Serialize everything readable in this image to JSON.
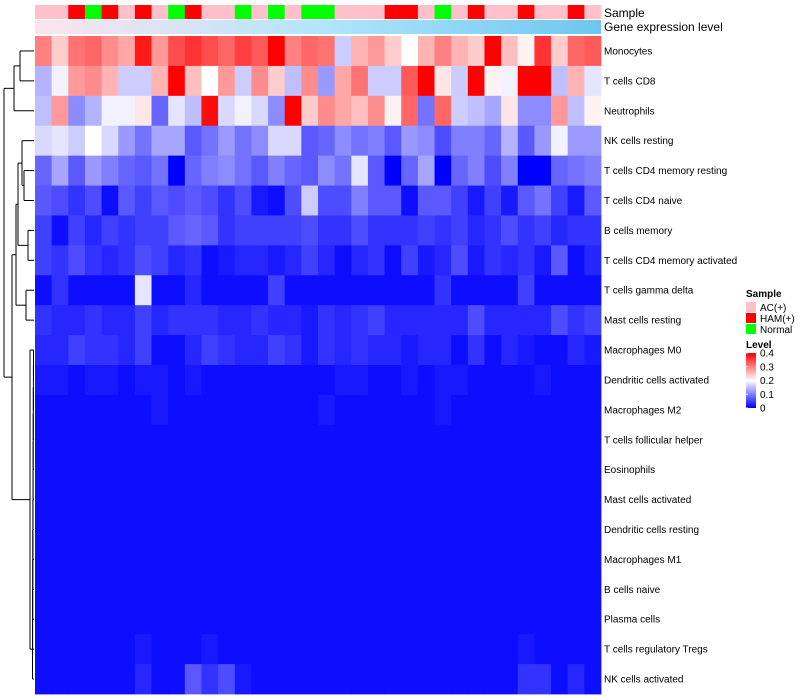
{
  "chart_data": {
    "type": "heatmap",
    "annotation_tracks": [
      "Sample",
      "Gene expression level"
    ],
    "column_count": 34,
    "sample_annotation": [
      "AC(+)",
      "AC(+)",
      "HAM(+)",
      "Normal",
      "HAM(+)",
      "AC(+)",
      "HAM(+)",
      "AC(+)",
      "Normal",
      "HAM(+)",
      "AC(+)",
      "AC(+)",
      "Normal",
      "AC(+)",
      "Normal",
      "AC(+)",
      "Normal",
      "Normal",
      "AC(+)",
      "AC(+)",
      "AC(+)",
      "HAM(+)",
      "HAM(+)",
      "AC(+)",
      "Normal",
      "AC(+)",
      "HAM(+)",
      "AC(+)",
      "AC(+)",
      "HAM(+)",
      "AC(+)",
      "AC(+)",
      "HAM(+)",
      "AC(+)"
    ],
    "gene_expression_gradient": [
      "#fce4ec",
      "#b3e5fc",
      "#6ec6f0"
    ],
    "rows": [
      "Monocytes",
      "T cells CD8",
      "Neutrophils",
      "NK cells resting",
      "T cells CD4 memory resting",
      "T cells CD4 naive",
      "B cells memory",
      "T cells CD4 memory activated",
      "T cells gamma delta",
      "Mast cells resting",
      "Macrophages M0",
      "Dendritic cells activated",
      "Macrophages M2",
      "T cells follicular helper",
      "Eosinophils",
      "Mast cells activated",
      "Dendritic cells resting",
      "Macrophages M1",
      "B cells naive",
      "Plasma cells",
      "T cells regulatory  Tregs",
      "NK cells activated"
    ],
    "values": [
      [
        0.3,
        0.24,
        0.31,
        0.32,
        0.29,
        0.27,
        0.38,
        0.28,
        0.34,
        0.36,
        0.34,
        0.32,
        0.35,
        0.33,
        0.4,
        0.3,
        0.32,
        0.31,
        0.16,
        0.26,
        0.28,
        0.24,
        0.2,
        0.26,
        0.3,
        0.26,
        0.24,
        0.42,
        0.25,
        0.21,
        0.36,
        0.24,
        0.32,
        0.33
      ],
      [
        0.14,
        0.19,
        0.28,
        0.29,
        0.26,
        0.16,
        0.16,
        0.26,
        0.43,
        0.25,
        0.2,
        0.28,
        0.16,
        0.29,
        0.24,
        0.15,
        0.29,
        0.12,
        0.27,
        0.31,
        0.16,
        0.16,
        0.33,
        0.43,
        0.22,
        0.16,
        0.42,
        0.21,
        0.19,
        0.42,
        0.43,
        0.15,
        0.26,
        0.18
      ],
      [
        0.15,
        0.28,
        0.11,
        0.14,
        0.19,
        0.19,
        0.22,
        0.08,
        0.18,
        0.15,
        0.39,
        0.17,
        0.19,
        0.17,
        0.11,
        0.41,
        0.24,
        0.29,
        0.27,
        0.25,
        0.29,
        0.21,
        0.32,
        0.09,
        0.32,
        0.16,
        0.15,
        0.13,
        0.22,
        0.11,
        0.11,
        0.28,
        0.15,
        0.21
      ],
      [
        0.17,
        0.18,
        0.16,
        0.2,
        0.17,
        0.12,
        0.09,
        0.13,
        0.13,
        0.07,
        0.09,
        0.12,
        0.09,
        0.11,
        0.17,
        0.17,
        0.07,
        0.08,
        0.11,
        0.09,
        0.1,
        0.07,
        0.12,
        0.11,
        0.06,
        0.1,
        0.1,
        0.08,
        0.14,
        0.07,
        0.12,
        0.19,
        0.12,
        0.12
      ],
      [
        0.08,
        0.13,
        0.07,
        0.12,
        0.1,
        0.08,
        0.07,
        0.09,
        0.0,
        0.08,
        0.1,
        0.11,
        0.09,
        0.07,
        0.1,
        0.08,
        0.07,
        0.11,
        0.09,
        0.18,
        0.07,
        0.0,
        0.08,
        0.13,
        0.0,
        0.08,
        0.1,
        0.06,
        0.1,
        0.0,
        0.0,
        0.08,
        0.09,
        0.1
      ],
      [
        0.07,
        0.06,
        0.04,
        0.06,
        0.01,
        0.07,
        0.05,
        0.07,
        0.06,
        0.07,
        0.06,
        0.04,
        0.06,
        0.02,
        0.01,
        0.06,
        0.16,
        0.06,
        0.06,
        0.1,
        0.07,
        0.07,
        0.01,
        0.07,
        0.07,
        0.05,
        0.02,
        0.05,
        0.02,
        0.07,
        0.09,
        0.05,
        0.02,
        0.07
      ],
      [
        0.05,
        0.01,
        0.05,
        0.03,
        0.05,
        0.04,
        0.05,
        0.05,
        0.07,
        0.08,
        0.07,
        0.04,
        0.05,
        0.05,
        0.05,
        0.05,
        0.06,
        0.04,
        0.04,
        0.06,
        0.04,
        0.04,
        0.04,
        0.05,
        0.04,
        0.05,
        0.03,
        0.04,
        0.06,
        0.04,
        0.05,
        0.03,
        0.04,
        0.04
      ],
      [
        0.05,
        0.04,
        0.06,
        0.04,
        0.03,
        0.04,
        0.06,
        0.05,
        0.03,
        0.04,
        0.01,
        0.02,
        0.03,
        0.03,
        0.02,
        0.03,
        0.05,
        0.03,
        0.01,
        0.03,
        0.04,
        0.01,
        0.05,
        0.02,
        0.03,
        0.06,
        0.02,
        0.04,
        0.03,
        0.04,
        0.02,
        0.07,
        0.01,
        0.03
      ],
      [
        0.01,
        0.04,
        0.01,
        0.01,
        0.01,
        0.01,
        0.18,
        0.01,
        0.01,
        0.03,
        0.01,
        0.01,
        0.01,
        0.01,
        0.05,
        0.01,
        0.01,
        0.01,
        0.01,
        0.01,
        0.01,
        0.01,
        0.01,
        0.01,
        0.04,
        0.01,
        0.01,
        0.01,
        0.01,
        0.05,
        0.01,
        0.01,
        0.01,
        0.01
      ],
      [
        0.04,
        0.03,
        0.03,
        0.04,
        0.03,
        0.03,
        0.05,
        0.03,
        0.04,
        0.04,
        0.04,
        0.03,
        0.03,
        0.04,
        0.03,
        0.03,
        0.02,
        0.04,
        0.03,
        0.04,
        0.05,
        0.03,
        0.03,
        0.03,
        0.03,
        0.03,
        0.06,
        0.03,
        0.03,
        0.03,
        0.03,
        0.06,
        0.04,
        0.05
      ],
      [
        0.03,
        0.03,
        0.05,
        0.04,
        0.04,
        0.03,
        0.05,
        0.01,
        0.01,
        0.03,
        0.05,
        0.04,
        0.03,
        0.03,
        0.05,
        0.04,
        0.02,
        0.04,
        0.03,
        0.04,
        0.03,
        0.03,
        0.02,
        0.03,
        0.03,
        0.01,
        0.04,
        0.01,
        0.03,
        0.02,
        0.01,
        0.01,
        0.03,
        0.02
      ],
      [
        0.02,
        0.02,
        0.01,
        0.02,
        0.02,
        0.01,
        0.02,
        0.02,
        0.01,
        0.02,
        0.01,
        0.01,
        0.01,
        0.01,
        0.01,
        0.01,
        0.01,
        0.01,
        0.02,
        0.02,
        0.01,
        0.01,
        0.02,
        0.01,
        0.02,
        0.02,
        0.01,
        0.01,
        0.01,
        0.01,
        0.02,
        0.01,
        0.01,
        0.01
      ],
      [
        0.01,
        0.01,
        0.01,
        0.01,
        0.01,
        0.01,
        0.01,
        0.02,
        0.01,
        0.01,
        0.01,
        0.01,
        0.01,
        0.01,
        0.01,
        0.01,
        0.01,
        0.02,
        0.01,
        0.01,
        0.01,
        0.01,
        0.01,
        0.01,
        0.02,
        0.01,
        0.01,
        0.01,
        0.01,
        0.01,
        0.01,
        0.01,
        0.01,
        0.01
      ],
      [
        0.01,
        0.01,
        0.01,
        0.01,
        0.01,
        0.01,
        0.01,
        0.01,
        0.01,
        0.01,
        0.01,
        0.01,
        0.01,
        0.01,
        0.01,
        0.01,
        0.01,
        0.01,
        0.01,
        0.01,
        0.01,
        0.01,
        0.01,
        0.01,
        0.01,
        0.01,
        0.01,
        0.01,
        0.01,
        0.01,
        0.01,
        0.01,
        0.01,
        0.01
      ],
      [
        0.01,
        0.01,
        0.01,
        0.01,
        0.01,
        0.01,
        0.01,
        0.01,
        0.01,
        0.01,
        0.01,
        0.01,
        0.01,
        0.01,
        0.01,
        0.01,
        0.01,
        0.01,
        0.01,
        0.01,
        0.01,
        0.01,
        0.01,
        0.01,
        0.01,
        0.01,
        0.01,
        0.01,
        0.01,
        0.01,
        0.01,
        0.01,
        0.01,
        0.01
      ],
      [
        0.01,
        0.01,
        0.01,
        0.01,
        0.01,
        0.01,
        0.01,
        0.01,
        0.01,
        0.01,
        0.01,
        0.01,
        0.01,
        0.01,
        0.01,
        0.01,
        0.01,
        0.01,
        0.01,
        0.01,
        0.01,
        0.01,
        0.01,
        0.01,
        0.01,
        0.01,
        0.01,
        0.01,
        0.01,
        0.01,
        0.01,
        0.01,
        0.01,
        0.01
      ],
      [
        0.01,
        0.01,
        0.01,
        0.01,
        0.01,
        0.01,
        0.01,
        0.01,
        0.01,
        0.01,
        0.01,
        0.01,
        0.01,
        0.01,
        0.01,
        0.01,
        0.01,
        0.01,
        0.01,
        0.01,
        0.01,
        0.01,
        0.01,
        0.01,
        0.01,
        0.01,
        0.01,
        0.01,
        0.01,
        0.01,
        0.01,
        0.01,
        0.01,
        0.01
      ],
      [
        0.01,
        0.01,
        0.01,
        0.01,
        0.01,
        0.01,
        0.01,
        0.01,
        0.01,
        0.01,
        0.01,
        0.01,
        0.01,
        0.01,
        0.01,
        0.01,
        0.01,
        0.01,
        0.01,
        0.01,
        0.01,
        0.01,
        0.01,
        0.01,
        0.01,
        0.01,
        0.01,
        0.01,
        0.01,
        0.01,
        0.01,
        0.01,
        0.01,
        0.01
      ],
      [
        0.01,
        0.01,
        0.01,
        0.01,
        0.01,
        0.01,
        0.01,
        0.01,
        0.01,
        0.01,
        0.01,
        0.01,
        0.01,
        0.01,
        0.01,
        0.01,
        0.01,
        0.01,
        0.01,
        0.01,
        0.01,
        0.01,
        0.01,
        0.01,
        0.01,
        0.01,
        0.01,
        0.01,
        0.01,
        0.01,
        0.01,
        0.01,
        0.01,
        0.01
      ],
      [
        0.01,
        0.01,
        0.01,
        0.01,
        0.01,
        0.01,
        0.01,
        0.01,
        0.01,
        0.01,
        0.01,
        0.01,
        0.01,
        0.01,
        0.01,
        0.01,
        0.01,
        0.01,
        0.01,
        0.01,
        0.01,
        0.01,
        0.01,
        0.01,
        0.01,
        0.01,
        0.01,
        0.01,
        0.01,
        0.01,
        0.01,
        0.01,
        0.01,
        0.01
      ],
      [
        0.01,
        0.01,
        0.01,
        0.01,
        0.01,
        0.01,
        0.02,
        0.01,
        0.01,
        0.01,
        0.02,
        0.01,
        0.01,
        0.01,
        0.01,
        0.01,
        0.01,
        0.01,
        0.01,
        0.01,
        0.01,
        0.01,
        0.01,
        0.01,
        0.01,
        0.01,
        0.01,
        0.01,
        0.01,
        0.02,
        0.01,
        0.01,
        0.01,
        0.01
      ],
      [
        0.01,
        0.01,
        0.01,
        0.01,
        0.01,
        0.01,
        0.03,
        0.01,
        0.01,
        0.07,
        0.04,
        0.06,
        0.02,
        0.01,
        0.01,
        0.01,
        0.01,
        0.01,
        0.01,
        0.01,
        0.01,
        0.01,
        0.01,
        0.01,
        0.01,
        0.01,
        0.01,
        0.01,
        0.01,
        0.04,
        0.04,
        0.01,
        0.03,
        0.01
      ]
    ],
    "color_scale": {
      "title": "Level",
      "domain": [
        0,
        0.2,
        0.4
      ],
      "colors": [
        "#0000ff",
        "#ffffff",
        "#ff0000"
      ],
      "ticks": [
        0.4,
        0.3,
        0.2,
        0.1,
        0
      ],
      "tick_labels": [
        "0.4",
        "0.3",
        "0.2",
        "0.1",
        "0"
      ]
    },
    "legend": {
      "title": "Sample",
      "items": [
        {
          "label": "AC(+)",
          "color": "#ffc0cb"
        },
        {
          "label": "HAM(+)",
          "color": "#ff0000"
        },
        {
          "label": "Normal",
          "color": "#00ff00"
        }
      ],
      "position": "right"
    },
    "dendrogram_side": "left"
  }
}
